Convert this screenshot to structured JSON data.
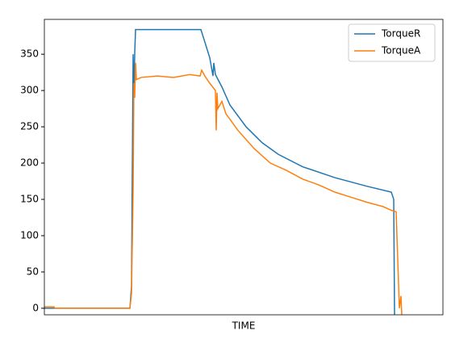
{
  "chart_data": {
    "type": "line",
    "x_label": "TIME",
    "xlim": [
      0,
      494
    ],
    "ylim": [
      -9,
      398
    ],
    "yticks": [
      0,
      50,
      100,
      150,
      200,
      250,
      300,
      350
    ],
    "legend": "upper right",
    "series": [
      {
        "name": "TorqueR",
        "color": "#1f77b4",
        "x": [
          0,
          106,
          108,
          110,
          111,
          112,
          113,
          194,
          198,
          205,
          209,
          210,
          212,
          220,
          230,
          250,
          270,
          290,
          320,
          360,
          400,
          430,
          433,
          434
        ],
        "values": [
          0,
          0,
          30,
          350,
          290,
          352,
          384,
          384,
          370,
          345,
          320,
          338,
          322,
          305,
          280,
          250,
          228,
          212,
          195,
          180,
          168,
          160,
          150,
          -9
        ]
      },
      {
        "name": "TorqueA",
        "color": "#ff7f0e",
        "x": [
          0,
          12,
          13,
          106,
          108,
          110,
          111,
          112,
          113,
          114,
          120,
          140,
          160,
          180,
          193,
          195,
          200,
          205,
          212,
          213,
          214,
          215,
          220,
          225,
          240,
          260,
          280,
          300,
          320,
          340,
          360,
          380,
          400,
          420,
          430,
          436,
          440,
          442,
          443
        ],
        "values": [
          2,
          2,
          0,
          0,
          20,
          160,
          310,
          290,
          338,
          315,
          318,
          320,
          318,
          322,
          320,
          328,
          318,
          310,
          300,
          245,
          297,
          275,
          285,
          268,
          245,
          220,
          200,
          190,
          178,
          170,
          160,
          153,
          146,
          140,
          135,
          133,
          0,
          17,
          -9
        ]
      }
    ]
  }
}
